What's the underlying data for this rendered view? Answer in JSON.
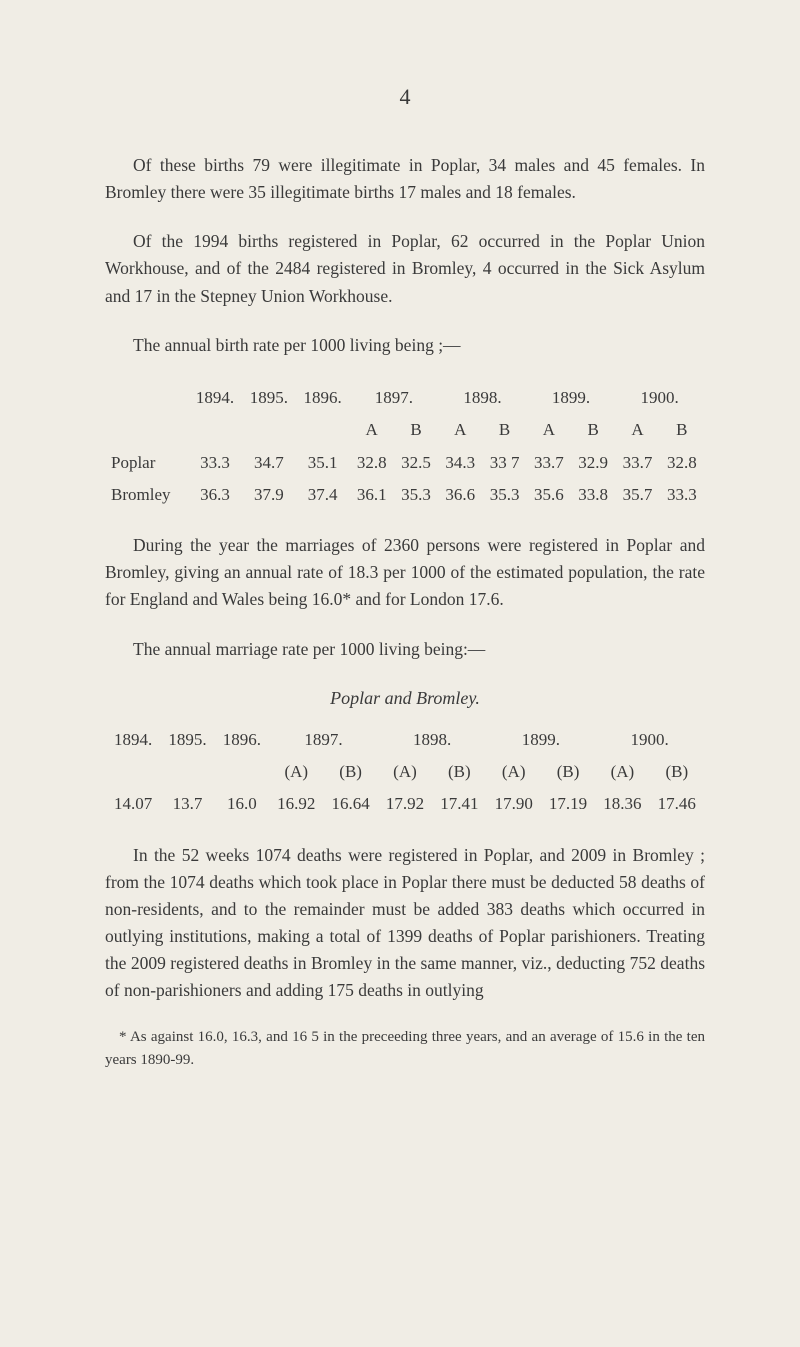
{
  "page_number": "4",
  "para1": "Of these births 79 were illegitimate in Poplar, 34 males and 45 females. In Bromley there were 35 illegitimate births 17 males and 18 females.",
  "para2": "Of the 1994 births registered in Poplar, 62 occurred in the Poplar Union Workhouse, and of the 2484 registered in Bromley, 4 occurred in the Sick Asylum and 17 in the Stepney Union Workhouse.",
  "para3": "The annual birth rate per 1000 living being ;—",
  "birth_table": {
    "years": [
      "1894.",
      "1895.",
      "1896.",
      "1897.",
      "1898.",
      "1899.",
      "1900."
    ],
    "sub_headers": [
      "A",
      "B",
      "A",
      "B",
      "A",
      "B",
      "A",
      "B"
    ],
    "rows": [
      {
        "label": "Poplar",
        "values": [
          "33.3",
          "34.7",
          "35.1",
          "32.8",
          "32.5",
          "34.3",
          "33 7",
          "33.7",
          "32.9",
          "33.7",
          "32.8"
        ]
      },
      {
        "label": "Bromley",
        "values": [
          "36.3",
          "37.9",
          "37.4",
          "36.1",
          "35.3",
          "36.6",
          "35.3",
          "35.6",
          "33.8",
          "35.7",
          "33.3"
        ]
      }
    ]
  },
  "para4": "During the year the marriages of 2360 persons were registered in Poplar and Bromley, giving an annual rate of 18.3 per 1000 of the estimated population, the rate for England and Wales being 16.0* and for London 17.6.",
  "para5": "The annual marriage rate per 1000 living being:—",
  "marriage_heading": "Poplar and Bromley.",
  "marriage_table": {
    "years": [
      "1894.",
      "1895.",
      "1896.",
      "1897.",
      "1898.",
      "1899.",
      "1900."
    ],
    "sub_headers": [
      "(A)",
      "(B)",
      "(A)",
      "(B)",
      "(A)",
      "(B)",
      "(A)",
      "(B)"
    ],
    "row": [
      "14.07",
      "13.7",
      "16.0",
      "16.92",
      "16.64",
      "17.92",
      "17.41",
      "17.90",
      "17.19",
      "18.36",
      "17.46"
    ]
  },
  "para6": "In the 52 weeks 1074 deaths were registered in Poplar, and 2009 in Bromley ; from the 1074 deaths which took place in Poplar there must be deducted 58 deaths of non-residents, and to the remainder must be added 383 deaths which occurred in outlying institutions, making a total of 1399 deaths of Poplar parishioners. Treating the 2009 registered deaths in Bromley in the same manner, viz., deduct­ing 752 deaths of non-parishioners and adding 175 deaths in outlying",
  "footnote": "* As against 16.0, 16.3, and 16 5 in the preceeding three years, and an average of 15.6 in the ten years 1890-99."
}
